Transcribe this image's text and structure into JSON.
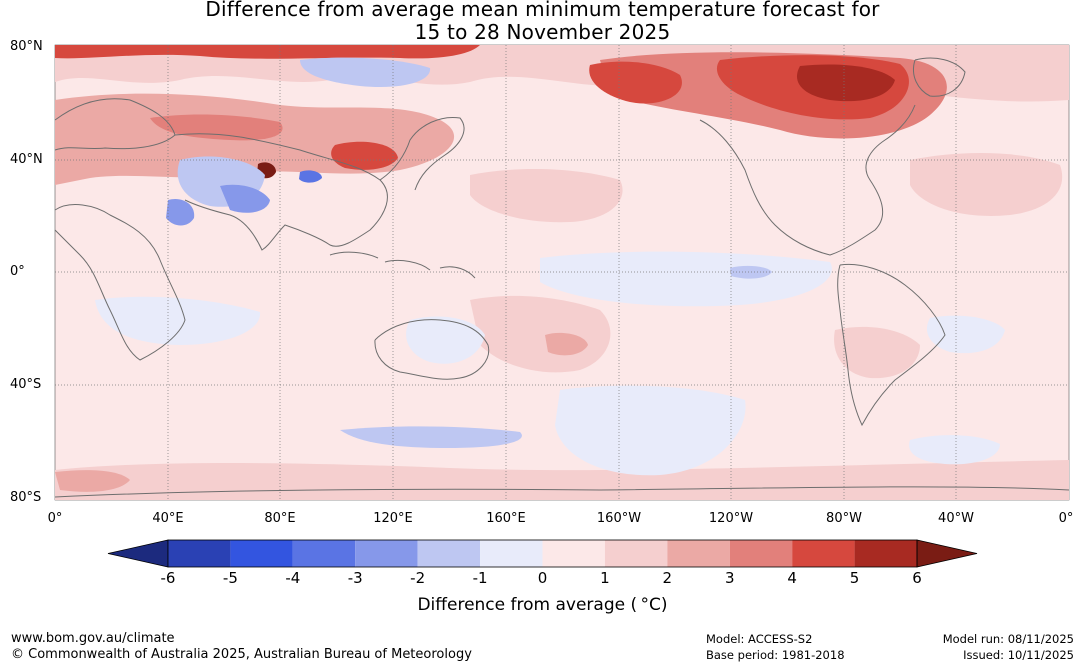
{
  "title": {
    "line1": "Difference from average mean minimum temperature forecast for",
    "line2": "15 to 28 November 2025"
  },
  "map": {
    "lat_labels": [
      "80°N",
      "40°N",
      "0°",
      "40°S",
      "80°S"
    ],
    "lon_labels": [
      "0°",
      "40°E",
      "80°E",
      "120°E",
      "160°E",
      "160°W",
      "120°W",
      "80°W",
      "40°W",
      "0°"
    ],
    "background_color": "#fce8e8",
    "coast_color": "#6e6e6e"
  },
  "colorbar": {
    "label": "Difference from average ( °C)",
    "ticks": [
      "-6",
      "-5",
      "-4",
      "-3",
      "-2",
      "-1",
      "0",
      "1",
      "2",
      "3",
      "4",
      "5",
      "6"
    ],
    "low_extend_color": "#1c2a7e",
    "high_extend_color": "#7a1c14",
    "bins": [
      "#2a41b4",
      "#3355e0",
      "#5a74e4",
      "#8698ea",
      "#bec7f2",
      "#e8ebfa",
      "#fce8e8",
      "#f5cfcf",
      "#eba9a5",
      "#e2807b",
      "#d6483e",
      "#a82a22"
    ]
  },
  "footer": {
    "website": "www.bom.gov.au/climate",
    "copyright": "© Commonwealth of Australia 2025, Australian Bureau of Meteorology",
    "model": "Model: ACCESS-S2",
    "base_period": "Base period: 1981-2018",
    "model_run": "Model run: 08/11/2025",
    "issued": "Issued: 10/11/2025"
  }
}
